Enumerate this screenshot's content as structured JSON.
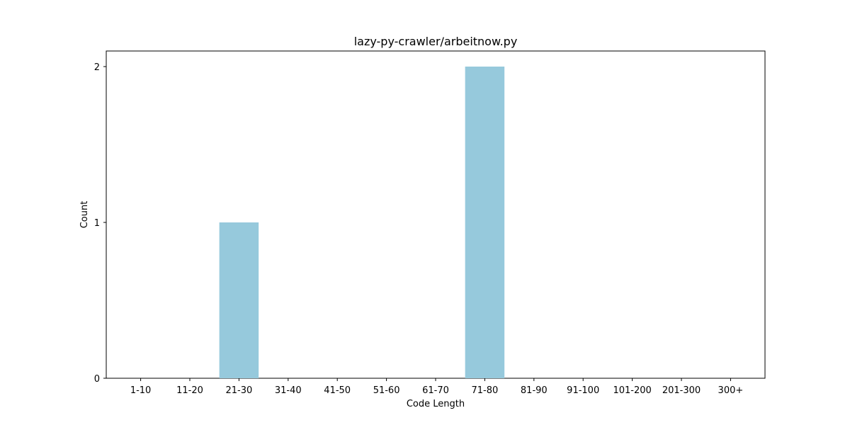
{
  "chart_data": {
    "type": "bar",
    "title": "lazy-py-crawler/arbeitnow.py",
    "xlabel": "Code Length",
    "ylabel": "Count",
    "categories": [
      "1-10",
      "11-20",
      "21-30",
      "31-40",
      "41-50",
      "51-60",
      "61-70",
      "71-80",
      "81-90",
      "91-100",
      "101-200",
      "201-300",
      "300+"
    ],
    "values": [
      0,
      0,
      1,
      0,
      0,
      0,
      0,
      2,
      0,
      0,
      0,
      0,
      0
    ],
    "ylim": [
      0,
      2.1
    ],
    "yticks": [
      0,
      1,
      2
    ],
    "ytick_labels": [
      "0",
      "1",
      "2"
    ],
    "grid": false,
    "bar_color": "#96c9dc"
  }
}
